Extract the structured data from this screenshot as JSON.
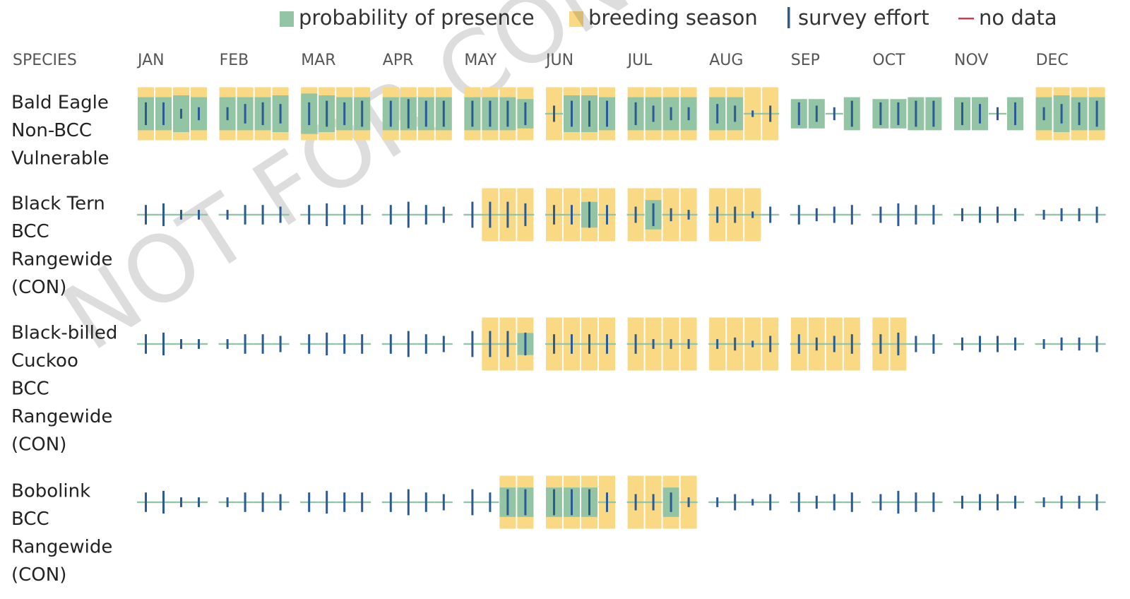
{
  "chart_data": {
    "type": "species-calendar",
    "legend": [
      "probability of presence",
      "breeding season",
      "survey effort",
      "no data"
    ],
    "header": "SPECIES",
    "months": [
      "JAN",
      "FEB",
      "MAR",
      "APR",
      "MAY",
      "JUN",
      "JUL",
      "AUG",
      "SEP",
      "OCT",
      "NOV",
      "DEC"
    ],
    "watermark": "NOT FOR CONSULTATION",
    "colors": {
      "probability": "#93c5a5",
      "breeding": "#fad985",
      "effort": "#2b5a94",
      "nodata": "#d8344a"
    },
    "species": [
      {
        "lines": [
          "Bald Eagle",
          "Non-BCC",
          "Vulnerable"
        ],
        "breeding": [
          1,
          1,
          1,
          1,
          1,
          1,
          1,
          1,
          1,
          1,
          1,
          1,
          1,
          1,
          1,
          1,
          1,
          1,
          1,
          1,
          1,
          1,
          1,
          1,
          1,
          1,
          1,
          1,
          1,
          1,
          1,
          1,
          0,
          0,
          0,
          0,
          0,
          0,
          0,
          0,
          0,
          0,
          0,
          0,
          1,
          1,
          1,
          1
        ],
        "probability": [
          9,
          9,
          10,
          9,
          9,
          9,
          9,
          10,
          11,
          10,
          9,
          9,
          9,
          9,
          9,
          9,
          9,
          9,
          9,
          8,
          0,
          10,
          10,
          9,
          9,
          9,
          9,
          9,
          9,
          9,
          0,
          0,
          8,
          8,
          0,
          9,
          8,
          8,
          9,
          9,
          9,
          9,
          0,
          9,
          9,
          10,
          9,
          9
        ],
        "effort": [
          7,
          7,
          3,
          4,
          4,
          6,
          7,
          6,
          7,
          8,
          7,
          8,
          8,
          9,
          8,
          8,
          8,
          8,
          8,
          7,
          5,
          8,
          8,
          8,
          7,
          5,
          4,
          4,
          6,
          5,
          2,
          5,
          7,
          5,
          4,
          8,
          7,
          7,
          8,
          8,
          7,
          6,
          4,
          7,
          4,
          6,
          7,
          8
        ]
      },
      {
        "lines": [
          "Black Tern",
          "BCC",
          "Rangewide",
          "(CON)"
        ],
        "breeding": [
          0,
          0,
          0,
          0,
          0,
          0,
          0,
          0,
          0,
          0,
          0,
          0,
          0,
          0,
          0,
          0,
          0,
          1,
          1,
          1,
          1,
          1,
          1,
          1,
          1,
          1,
          1,
          1,
          1,
          1,
          1,
          0,
          0,
          0,
          0,
          0,
          0,
          0,
          0,
          0,
          0,
          0,
          0,
          0,
          0,
          0,
          0,
          0
        ],
        "probability": [
          0,
          0,
          0,
          0,
          0,
          0,
          0,
          0,
          0,
          0,
          0,
          0,
          0,
          0,
          0,
          0,
          0,
          0,
          0,
          0,
          0,
          0,
          7,
          0,
          0,
          8,
          0,
          0,
          0,
          0,
          0,
          0,
          0,
          0,
          0,
          0,
          0,
          0,
          0,
          0,
          0,
          0,
          0,
          0,
          0,
          0,
          0,
          0
        ],
        "effort": [
          6,
          7,
          3,
          3,
          3,
          6,
          6,
          5,
          6,
          7,
          6,
          6,
          6,
          8,
          6,
          5,
          8,
          8,
          8,
          7,
          6,
          6,
          8,
          6,
          5,
          7,
          4,
          3,
          5,
          5,
          2,
          5,
          6,
          4,
          5,
          6,
          5,
          7,
          6,
          6,
          4,
          5,
          5,
          4,
          3,
          4,
          4,
          5
        ]
      },
      {
        "lines": [
          "Black-billed",
          "Cuckoo",
          "BCC",
          "Rangewide",
          "(CON)"
        ],
        "breeding": [
          0,
          0,
          0,
          0,
          0,
          0,
          0,
          0,
          0,
          0,
          0,
          0,
          0,
          0,
          0,
          0,
          0,
          1,
          1,
          1,
          1,
          1,
          1,
          1,
          1,
          1,
          1,
          1,
          1,
          1,
          1,
          1,
          1,
          1,
          1,
          1,
          1,
          1,
          0,
          0,
          0,
          0,
          0,
          0,
          0,
          0,
          0,
          0
        ],
        "probability": [
          0,
          0,
          0,
          0,
          0,
          0,
          0,
          0,
          0,
          0,
          0,
          0,
          0,
          0,
          0,
          0,
          0,
          0,
          0,
          6,
          0,
          0,
          0,
          0,
          0,
          0,
          0,
          0,
          0,
          0,
          0,
          0,
          0,
          0,
          0,
          0,
          0,
          0,
          0,
          0,
          0,
          0,
          0,
          0,
          0,
          0,
          0,
          0
        ],
        "effort": [
          6,
          7,
          3,
          3,
          3,
          6,
          6,
          5,
          6,
          7,
          6,
          6,
          6,
          8,
          6,
          5,
          8,
          8,
          8,
          7,
          6,
          6,
          6,
          6,
          6,
          3,
          3,
          3,
          3,
          4,
          2,
          5,
          6,
          4,
          5,
          6,
          6,
          7,
          5,
          6,
          4,
          5,
          5,
          4,
          3,
          4,
          4,
          5
        ]
      },
      {
        "lines": [
          "Bobolink",
          "BCC",
          "Rangewide",
          "(CON)"
        ],
        "breeding": [
          0,
          0,
          0,
          0,
          0,
          0,
          0,
          0,
          0,
          0,
          0,
          0,
          0,
          0,
          0,
          0,
          0,
          0,
          1,
          1,
          1,
          1,
          1,
          1,
          1,
          1,
          1,
          1,
          0,
          0,
          0,
          0,
          0,
          0,
          0,
          0,
          0,
          0,
          0,
          0,
          0,
          0,
          0,
          0,
          0,
          0,
          0,
          0
        ],
        "probability": [
          0,
          0,
          0,
          0,
          0,
          0,
          0,
          0,
          0,
          0,
          0,
          0,
          0,
          0,
          0,
          0,
          0,
          0,
          8,
          8,
          8,
          8,
          8,
          0,
          0,
          0,
          8,
          0,
          0,
          0,
          0,
          0,
          0,
          0,
          0,
          0,
          0,
          0,
          0,
          0,
          0,
          0,
          0,
          0,
          0,
          0,
          0,
          0
        ],
        "effort": [
          6,
          7,
          3,
          3,
          3,
          6,
          6,
          5,
          6,
          7,
          6,
          6,
          6,
          8,
          6,
          5,
          8,
          6,
          8,
          8,
          8,
          8,
          8,
          6,
          5,
          5,
          6,
          3,
          3,
          5,
          2,
          5,
          6,
          4,
          5,
          6,
          5,
          7,
          6,
          6,
          4,
          5,
          5,
          4,
          3,
          4,
          4,
          5
        ]
      }
    ]
  }
}
